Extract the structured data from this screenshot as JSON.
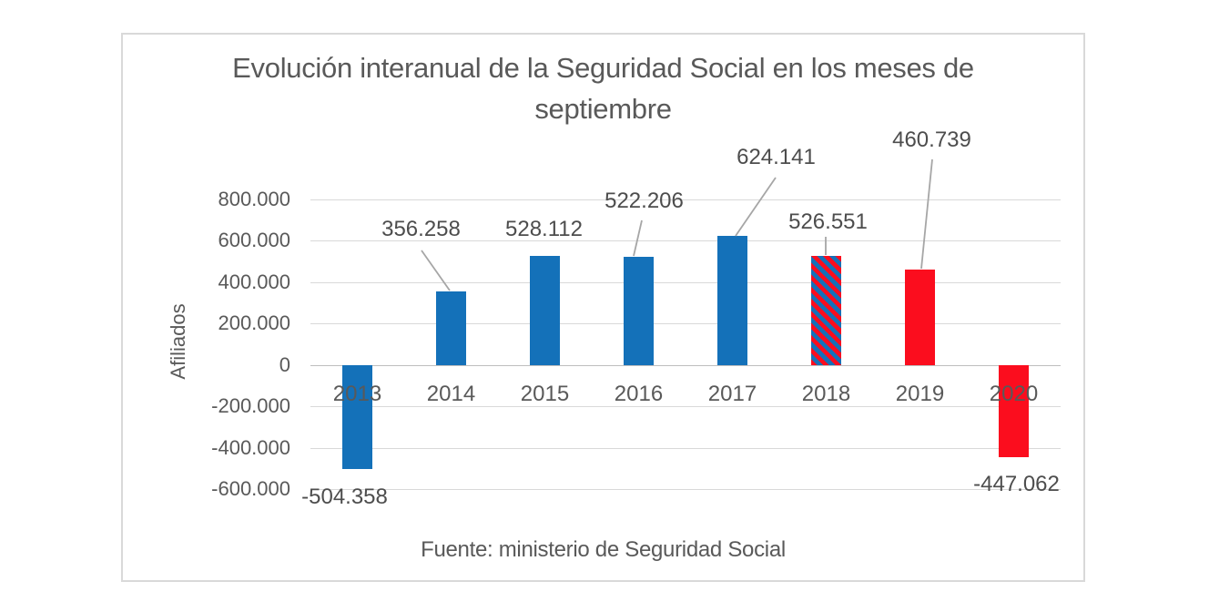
{
  "chart_data": {
    "type": "bar",
    "title": "Evolución interanual de la Seguridad Social en los meses de septiembre",
    "xlabel": "",
    "ylabel": "Afiliados",
    "source_note": "Fuente: ministerio de Seguridad Social",
    "categories": [
      "2013",
      "2014",
      "2015",
      "2016",
      "2017",
      "2018",
      "2019",
      "2020"
    ],
    "values": [
      -504358,
      356258,
      528112,
      522206,
      624141,
      526551,
      460739,
      -447062
    ],
    "point_labels": [
      "-504.358",
      "356.258",
      "528.112",
      "522.206",
      "624.141",
      "526.551",
      "460.739",
      "-447.062"
    ],
    "point_styles": [
      "blue",
      "blue",
      "blue",
      "blue",
      "blue",
      "hatch",
      "red",
      "red"
    ],
    "y_ticks": [
      {
        "label": "800.000",
        "value": 800000
      },
      {
        "label": "600.000",
        "value": 600000
      },
      {
        "label": "400.000",
        "value": 400000
      },
      {
        "label": "200.000",
        "value": 200000
      },
      {
        "label": "0",
        "value": 0
      },
      {
        "label": "-200.000",
        "value": -200000
      },
      {
        "label": "-400.000",
        "value": -400000
      },
      {
        "label": "-600.000",
        "value": -600000
      }
    ],
    "ylim": [
      -600000,
      800000
    ],
    "grid": true,
    "legend_position": "none"
  },
  "colors": {
    "bar_blue": "#1471B9",
    "bar_red": "#FB0D1E",
    "gridline": "#D9D9D9",
    "zero_line": "#BEBEBE",
    "text": "#595959",
    "data_label_text": "#4D4D4D",
    "leader_line": "#A6A6A6",
    "frame_border": "#D9D9D9"
  }
}
